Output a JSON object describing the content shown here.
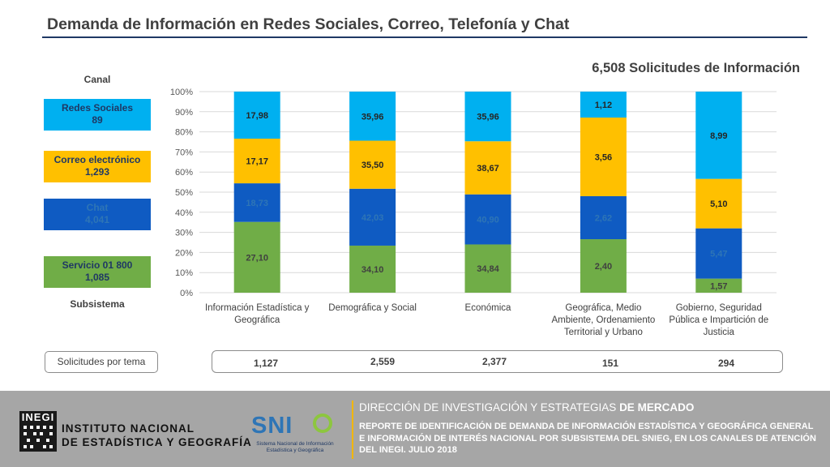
{
  "header": {
    "title": "Demanda de Información en Redes Sociales, Correo, Telefonía y Chat",
    "total_requests": "6,508 Solicitudes de Información"
  },
  "legend": {
    "heading": "Canal",
    "footer_heading": "Subsistema",
    "items": [
      {
        "name": "Redes Sociales",
        "count": "89",
        "color": "#00b0f0",
        "text_color": "#1f3864"
      },
      {
        "name": "Correo electrónico",
        "count": "1,293",
        "color": "#ffc000",
        "text_color": "#1f3864"
      },
      {
        "name": "Chat",
        "count": "4,041",
        "color": "#0f5bc2",
        "text_color": "#2e75b6"
      },
      {
        "name": "Servicio 01 800",
        "count": "1,085",
        "color": "#70ad47",
        "text_color": "#1f3864"
      }
    ]
  },
  "topics": {
    "label": "Solicitudes por tema",
    "totals": [
      "1,127",
      "2,559",
      "2,377",
      "151",
      "294"
    ]
  },
  "chart_data": {
    "type": "bar",
    "stacked": true,
    "categories": [
      [
        "Información Estadística y",
        "Geográfica"
      ],
      [
        "Demográfica y Social"
      ],
      [
        "Económica"
      ],
      [
        "Geográfica, Medio",
        "Ambiente, Ordenamiento",
        "Territorial y Urbano"
      ],
      [
        "Gobierno, Seguridad",
        "Pública e Impartición de",
        "Justicia"
      ]
    ],
    "series": [
      {
        "name": "Servicio 01 800",
        "color": "#70ad47",
        "label_color": "#404040",
        "values": [
          35.2,
          23.4,
          24.0,
          26.6,
          7.0
        ],
        "labels": [
          "27,10",
          "34,10",
          "34,84",
          "2,40",
          "1,57"
        ]
      },
      {
        "name": "Chat",
        "color": "#0f5bc2",
        "label_color": "#2e75b6",
        "values": [
          19.2,
          28.3,
          24.9,
          21.4,
          25.0
        ],
        "labels": [
          "18,73",
          "42,03",
          "40,90",
          "2,62",
          "5,47"
        ]
      },
      {
        "name": "Correo electrónico",
        "color": "#ffc000",
        "label_color": "#262626",
        "values": [
          22.2,
          23.9,
          26.4,
          39.1,
          24.6
        ],
        "labels": [
          "17,17",
          "35,50",
          "38,67",
          "3,56",
          "5,10"
        ]
      },
      {
        "name": "Redes Sociales",
        "color": "#00b0f0",
        "label_color": "#262626",
        "values": [
          23.4,
          24.4,
          24.7,
          12.9,
          43.4
        ],
        "labels": [
          "17,98",
          "35,96",
          "35,96",
          "1,12",
          "8,99"
        ]
      }
    ],
    "ylim": [
      0,
      100
    ],
    "ytick_labels": [
      "0%",
      "10%",
      "20%",
      "30%",
      "40%",
      "50%",
      "60%",
      "70%",
      "80%",
      "90%",
      "100%"
    ],
    "grid": true
  },
  "footer": {
    "inegi_logo_text": "INEGI",
    "institute_line1": "INSTITUTO NACIONAL",
    "institute_line2": "DE ESTADÍSTICA Y GEOGRAFÍA",
    "snieg_logo": "SNI",
    "snieg_sub": "Sistema Nacional de Información Estadística y Geográfica",
    "dept_normal": "DIRECCIÓN DE INVESTIGACIÓN Y ESTRATEGIAS ",
    "dept_bold": "DE MERCADO",
    "report": "REPORTE DE IDENTIFICACIÓN DE DEMANDA DE INFORMACIÓN ESTADÍSTICA Y GEOGRÁFICA GENERAL E INFORMACIÓN DE INTERÉS NACIONAL POR SUBSISTEMA DEL SNIEG, EN LOS CANALES DE ATENCIÓN DEL INEGI. JULIO 2018"
  }
}
